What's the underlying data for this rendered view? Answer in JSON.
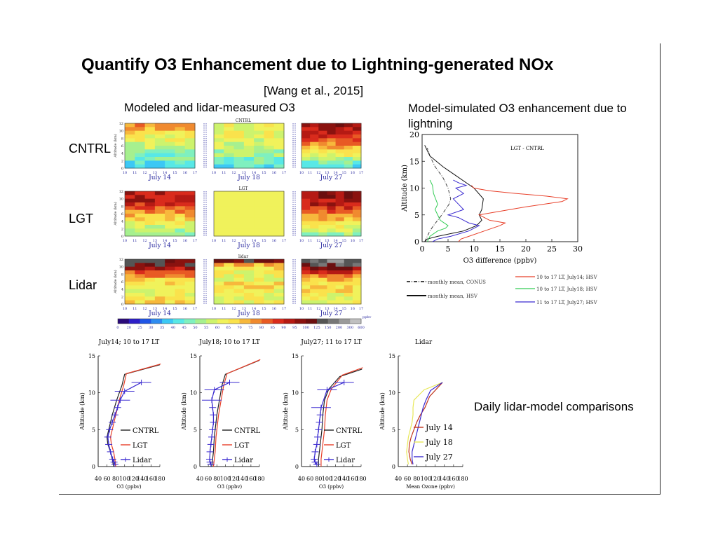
{
  "slide": {
    "title": "Quantify O3 Enhancement due to Lightning-generated NOx",
    "citation": "[Wang et al., 2015]",
    "heatmap_heading": "Modeled and lidar-measured O3",
    "enhancement_heading": "Model-simulated O3 enhancement due to lightning",
    "comparison_note": "Daily lidar-model comparisons",
    "row_labels": [
      "CNTRL",
      "LGT",
      "Lidar"
    ]
  },
  "chart_data": [
    {
      "type": "heatmap",
      "panels": [
        "CNTRL",
        "LGT",
        "lidar"
      ],
      "dates": [
        "July 14",
        "July 18",
        "July 27"
      ],
      "hour_ticks": [
        "10",
        "11",
        "12",
        "13",
        "14",
        "15",
        "16",
        "17"
      ],
      "ylabel": "Altitude (km)",
      "y_ticks": [
        "0",
        "2",
        "4",
        "6",
        "8",
        "10",
        "12"
      ],
      "colorbar_unit": "ppbv",
      "colorbar_ticks": [
        "0",
        "20",
        "25",
        "30",
        "35",
        "40",
        "45",
        "50",
        "55",
        "60",
        "65",
        "70",
        "75",
        "80",
        "85",
        "90",
        "95",
        "100",
        "125",
        "150",
        "200",
        "300",
        "600"
      ],
      "colorbar_colors": [
        "#2a0a7a",
        "#2d1ec8",
        "#1f55e6",
        "#2f8cf0",
        "#3cc8f5",
        "#58e8e6",
        "#7ff0bf",
        "#a6f08f",
        "#cdf36d",
        "#f0f25b",
        "#fae24c",
        "#f7b83c",
        "#f08a2f",
        "#e85a24",
        "#d92b1c",
        "#b51a14",
        "#8a120f",
        "#6b0f0f",
        "#555555",
        "#777777",
        "#9a9a9a",
        "#c0c0c0"
      ]
    },
    {
      "type": "line",
      "title": "LGT - CNTRL",
      "xlabel": "O3 difference (ppbv)",
      "ylabel": "Altitude (km)",
      "xlim": [
        0,
        30
      ],
      "ylim": [
        0,
        20
      ],
      "x_ticks": [
        "0",
        "5",
        "10",
        "15",
        "20",
        "25",
        "30"
      ],
      "y_ticks": [
        "0",
        "5",
        "10",
        "15",
        "20"
      ],
      "series": [
        {
          "name": "monthly mean, CONUS",
          "color": "#444444",
          "dash": "dashdot",
          "x": [
            0.5,
            1,
            1.5,
            2.2,
            3,
            3.8,
            4.5,
            5.2,
            5.5,
            5,
            4,
            2.5,
            1.5,
            1
          ],
          "y": [
            0,
            1,
            2,
            3,
            4,
            5,
            6,
            7,
            8,
            10,
            12,
            14,
            16,
            17.5
          ]
        },
        {
          "name": "monthly mean, HSV",
          "color": "#111111",
          "dash": "solid",
          "x": [
            0.5,
            1,
            3,
            5.5,
            8,
            10.5,
            11.5,
            11,
            11.5,
            11.8,
            10,
            7,
            4,
            1.5,
            0.5
          ],
          "y": [
            0,
            0.5,
            1,
            1.5,
            2,
            3,
            4,
            5,
            6,
            8,
            10,
            12,
            14,
            16,
            18
          ]
        },
        {
          "name": "10 to 17 LT, July14; HSV",
          "color": "#e8402a",
          "dash": "solid",
          "x": [
            7,
            7.5,
            9,
            12,
            15,
            16,
            13,
            11,
            14,
            20,
            27,
            28,
            24,
            18,
            13,
            10,
            9.5
          ],
          "y": [
            0,
            0.5,
            1,
            2,
            3,
            3.5,
            4,
            5,
            5.5,
            6.5,
            7.5,
            8,
            8.5,
            9,
            9.5,
            10,
            10.5
          ]
        },
        {
          "name": "10 to 17 LT, July18; HSV",
          "color": "#33cc55",
          "dash": "solid",
          "x": [
            1,
            1.5,
            3,
            4.5,
            5,
            3.5,
            3,
            2.5,
            3,
            2.2,
            2,
            1.5
          ],
          "y": [
            0,
            1,
            2,
            2.5,
            3,
            4,
            5,
            6,
            7,
            9,
            10.5,
            11.5
          ]
        },
        {
          "name": "11 to 17 LT, July27; HSV",
          "color": "#3a2ad0",
          "dash": "solid",
          "x": [
            2,
            3,
            5.5,
            9,
            11,
            9,
            8,
            7,
            5,
            8,
            7,
            6,
            8,
            6.5,
            8.5,
            7,
            6
          ],
          "y": [
            0,
            0.5,
            1,
            2,
            3,
            3.5,
            4,
            4.5,
            5,
            6,
            7,
            8,
            9,
            10,
            10.5,
            11,
            11.5
          ]
        }
      ]
    },
    {
      "type": "line",
      "title": "July14; 10 to 17 LT",
      "xlabel": "O3 (ppbv)",
      "ylabel": "Altitude (km)",
      "xlim": [
        40,
        180
      ],
      "ylim": [
        0,
        15
      ],
      "x_ticks": [
        "40",
        "60",
        "80",
        "100",
        "120",
        "140",
        "160",
        "180"
      ],
      "y_ticks": [
        "0",
        "5",
        "10",
        "15"
      ],
      "legend": [
        "CNTRL",
        "LGT",
        "Lidar"
      ],
      "series": [
        {
          "name": "CNTRL",
          "color": "#222222",
          "x": [
            75,
            72,
            68,
            62,
            60,
            64,
            72,
            82,
            94,
            100,
            180
          ],
          "y": [
            0,
            1,
            2,
            3,
            4,
            5,
            7,
            9,
            11,
            12.5,
            13.8
          ]
        },
        {
          "name": "LGT",
          "color": "#e8402a",
          "x": [
            80,
            78,
            75,
            70,
            68,
            72,
            80,
            88,
            98,
            104,
            182
          ],
          "y": [
            0,
            1,
            2,
            3,
            4,
            5,
            7,
            9,
            11,
            12.6,
            13.9
          ]
        },
        {
          "name": "Lidar",
          "color": "#3a2ad0",
          "x": [
            78,
            76,
            73,
            68,
            64,
            62,
            66,
            72,
            78,
            84,
            90,
            100,
            138
          ],
          "y": [
            0.3,
            0.6,
            1,
            2,
            3,
            4,
            5,
            6,
            7,
            8,
            9,
            10.2,
            11.4
          ]
        }
      ]
    },
    {
      "type": "line",
      "title": "July18; 10 to 17 LT",
      "xlabel": "O3 (ppbv)",
      "ylabel": "Altitude (km)",
      "xlim": [
        40,
        180
      ],
      "ylim": [
        0,
        15
      ],
      "x_ticks": [
        "40",
        "60",
        "80",
        "100",
        "120",
        "140",
        "160",
        "180"
      ],
      "y_ticks": [
        "0",
        "5",
        "10",
        "15"
      ],
      "legend": [
        "CNTRL",
        "LGT",
        "Lidar"
      ],
      "series": [
        {
          "name": "CNTRL",
          "color": "#222222",
          "x": [
            68,
            70,
            72,
            73,
            74,
            76,
            80,
            86,
            92,
            100,
            180
          ],
          "y": [
            0,
            1,
            2,
            3,
            4,
            5,
            7,
            9,
            11,
            12.5,
            14.4
          ]
        },
        {
          "name": "LGT",
          "color": "#e8402a",
          "x": [
            72,
            74,
            76,
            77,
            78,
            80,
            84,
            90,
            96,
            104,
            182
          ],
          "y": [
            0,
            1,
            2,
            3,
            4,
            5,
            7,
            9,
            11,
            12.6,
            14.5
          ]
        },
        {
          "name": "Lidar",
          "color": "#3a2ad0",
          "x": [
            66,
            64,
            63,
            64,
            66,
            68,
            70,
            72,
            72,
            70,
            68,
            74,
            110
          ],
          "y": [
            0.3,
            0.6,
            1,
            2,
            3,
            4,
            5,
            6,
            7,
            8,
            9,
            10.4,
            11.4
          ]
        }
      ]
    },
    {
      "type": "line",
      "title": "July27; 11 to 17 LT",
      "xlabel": "O3 (ppbv)",
      "ylabel": "Altitude (km)",
      "xlim": [
        40,
        180
      ],
      "ylim": [
        0,
        15
      ],
      "x_ticks": [
        "40",
        "60",
        "80",
        "100",
        "120",
        "140",
        "160",
        "180"
      ],
      "y_ticks": [
        "0",
        "5",
        "10",
        "15"
      ],
      "legend": [
        "CNTRL",
        "LGT",
        "Lidar"
      ],
      "series": [
        {
          "name": "CNTRL",
          "color": "#222222",
          "x": [
            80,
            80,
            82,
            84,
            86,
            88,
            90,
            94,
            104,
            130,
            182
          ],
          "y": [
            0,
            1,
            2,
            3,
            4,
            5,
            7,
            9,
            10.5,
            12.2,
            13.2
          ]
        },
        {
          "name": "LGT",
          "color": "#e8402a",
          "x": [
            86,
            86,
            88,
            90,
            92,
            94,
            96,
            100,
            110,
            136,
            184
          ],
          "y": [
            0,
            1,
            2,
            3,
            4,
            5,
            7,
            9,
            10.5,
            12.4,
            13.4
          ]
        },
        {
          "name": "Lidar",
          "color": "#3a2ad0",
          "x": [
            76,
            72,
            70,
            72,
            76,
            78,
            80,
            82,
            84,
            86,
            100,
            140
          ],
          "y": [
            0.3,
            0.6,
            1,
            2,
            3,
            4,
            5,
            6,
            7,
            8,
            10.4,
            11.4
          ]
        }
      ]
    },
    {
      "type": "line",
      "title": "Lidar",
      "xlabel": "Mean Ozone (ppbv)",
      "ylabel": "Altitude (km)",
      "xlim": [
        40,
        180
      ],
      "ylim": [
        0,
        15
      ],
      "x_ticks": [
        "40",
        "60",
        "80",
        "100",
        "120",
        "140",
        "160",
        "180"
      ],
      "y_ticks": [
        "0",
        "5",
        "10",
        "15"
      ],
      "legend": [
        "July 14",
        "July 18",
        "July 27"
      ],
      "series": [
        {
          "name": "July 14",
          "color": "#c0331c",
          "x": [
            70,
            66,
            63,
            64,
            68,
            74,
            80,
            88,
            98,
            108,
            136
          ],
          "y": [
            0.3,
            1,
            2,
            3,
            4,
            5,
            6,
            7,
            8,
            9.5,
            11.4
          ]
        },
        {
          "name": "July 18",
          "color": "#e8e85a",
          "x": [
            62,
            60,
            58,
            60,
            62,
            66,
            70,
            72,
            72,
            74,
            96,
            136
          ],
          "y": [
            0.3,
            1,
            2,
            3,
            4,
            5,
            6,
            7,
            8,
            9,
            10.4,
            11.4
          ]
        },
        {
          "name": "July 27",
          "color": "#3a2ad0",
          "x": [
            72,
            70,
            70,
            74,
            78,
            82,
            86,
            90,
            94,
            100,
            110,
            136
          ],
          "y": [
            0.3,
            1,
            2,
            3,
            4,
            5,
            6,
            7,
            8,
            9,
            10.3,
            11.4
          ]
        }
      ]
    }
  ]
}
